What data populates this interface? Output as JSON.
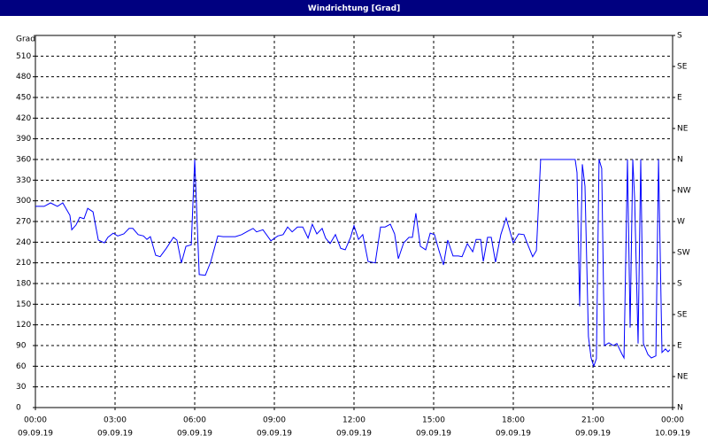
{
  "chart_data": {
    "type": "line",
    "title": "Windrichtung [Grad]",
    "y_label": "Grad",
    "xlim": [
      0,
      24
    ],
    "xticks": [
      {
        "value": 0,
        "label": "00:00"
      },
      {
        "value": 3,
        "label": "03:00"
      },
      {
        "value": 6,
        "label": "06:00"
      },
      {
        "value": 9,
        "label": "09:00"
      },
      {
        "value": 12,
        "label": "12:00"
      },
      {
        "value": 15,
        "label": "15:00"
      },
      {
        "value": 18,
        "label": "18:00"
      },
      {
        "value": 21,
        "label": "21:00"
      },
      {
        "value": 24,
        "label": "00:00"
      }
    ],
    "xtick_dates": [
      "09.09.19",
      "09.09.19",
      "09.09.19",
      "09.09.19",
      "09.09.19",
      "09.09.19",
      "09.09.19",
      "09.09.19",
      "10.09.19"
    ],
    "ylim": [
      0,
      540
    ],
    "yticks": [
      0,
      30,
      60,
      90,
      120,
      150,
      180,
      210,
      240,
      270,
      300,
      330,
      360,
      390,
      420,
      450,
      480,
      510
    ],
    "y2lim": [
      0,
      540
    ],
    "y2ticks": [
      {
        "value": 0,
        "label": "N"
      },
      {
        "value": 45,
        "label": "NE"
      },
      {
        "value": 90,
        "label": "E"
      },
      {
        "value": 135,
        "label": "SE"
      },
      {
        "value": 180,
        "label": "S"
      },
      {
        "value": 225,
        "label": "SW"
      },
      {
        "value": 270,
        "label": "W"
      },
      {
        "value": 315,
        "label": "NW"
      },
      {
        "value": 360,
        "label": "N"
      },
      {
        "value": 405,
        "label": "NE"
      },
      {
        "value": 450,
        "label": "E"
      },
      {
        "value": 495,
        "label": "SE"
      },
      {
        "value": 540,
        "label": "S"
      }
    ],
    "grid": true,
    "x": [
      0,
      0.33,
      0.57,
      0.83,
      1.03,
      1.3,
      1.37,
      1.53,
      1.67,
      1.83,
      1.97,
      2.17,
      2.37,
      2.6,
      2.73,
      2.93,
      3.1,
      3.33,
      3.53,
      3.67,
      3.87,
      4.07,
      4.2,
      4.33,
      4.53,
      4.7,
      4.93,
      5.2,
      5.33,
      5.5,
      5.67,
      5.87,
      6,
      6.17,
      6.4,
      6.6,
      6.87,
      7.07,
      7.27,
      7.53,
      7.77,
      8,
      8.2,
      8.33,
      8.57,
      8.87,
      9.13,
      9.33,
      9.5,
      9.67,
      9.87,
      10.07,
      10.27,
      10.43,
      10.6,
      10.8,
      10.93,
      11.1,
      11.3,
      11.5,
      11.67,
      11.87,
      12,
      12.17,
      12.33,
      12.53,
      12.8,
      13,
      13.17,
      13.37,
      13.53,
      13.67,
      13.87,
      14.07,
      14.2,
      14.33,
      14.5,
      14.7,
      14.87,
      15.03,
      15.2,
      15.37,
      15.53,
      15.73,
      15.93,
      16.07,
      16.27,
      16.47,
      16.6,
      16.77,
      16.87,
      17.03,
      17.17,
      17.33,
      17.53,
      17.73,
      18,
      18.2,
      18.4,
      18.53,
      18.73,
      18.87,
      19.03,
      20.33,
      20.4,
      20.5,
      20.6,
      20.7,
      20.83,
      20.93,
      21.03,
      21.13,
      21.23,
      21.33,
      21.43,
      21.6,
      21.77,
      21.9,
      22.1,
      22.17,
      22.3,
      22.4,
      22.5,
      22.57,
      22.7,
      22.8,
      22.9,
      23.07,
      23.2,
      23.37,
      23.47,
      23.6,
      23.73,
      23.83,
      23.9
    ],
    "series": [
      {
        "color": "#0000ff",
        "values": [
          292,
          292,
          297,
          292,
          297,
          279,
          258,
          265,
          276,
          274,
          289,
          284,
          243,
          239,
          247,
          253,
          249,
          252,
          260,
          260,
          251,
          249,
          244,
          248,
          221,
          219,
          231,
          247,
          243,
          210,
          234,
          236,
          360,
          193,
          192,
          211,
          249,
          248,
          248,
          248,
          251,
          256,
          260,
          255,
          258,
          242,
          249,
          251,
          262,
          255,
          262,
          262,
          246,
          266,
          252,
          260,
          246,
          238,
          251,
          231,
          229,
          247,
          264,
          244,
          251,
          212,
          210,
          262,
          262,
          266,
          252,
          216,
          239,
          247,
          247,
          282,
          234,
          229,
          253,
          251,
          228,
          207,
          243,
          220,
          220,
          219,
          238,
          226,
          244,
          244,
          212,
          247,
          247,
          211,
          251,
          275,
          239,
          252,
          251,
          238,
          219,
          228,
          360,
          360,
          341,
          147,
          353,
          321,
          103,
          72,
          60,
          71,
          360,
          347,
          90,
          94,
          90,
          93,
          77,
          72,
          360,
          116,
          360,
          303,
          93,
          360,
          93,
          77,
          72,
          75,
          360,
          80,
          85,
          81,
          84
        ]
      }
    ]
  }
}
